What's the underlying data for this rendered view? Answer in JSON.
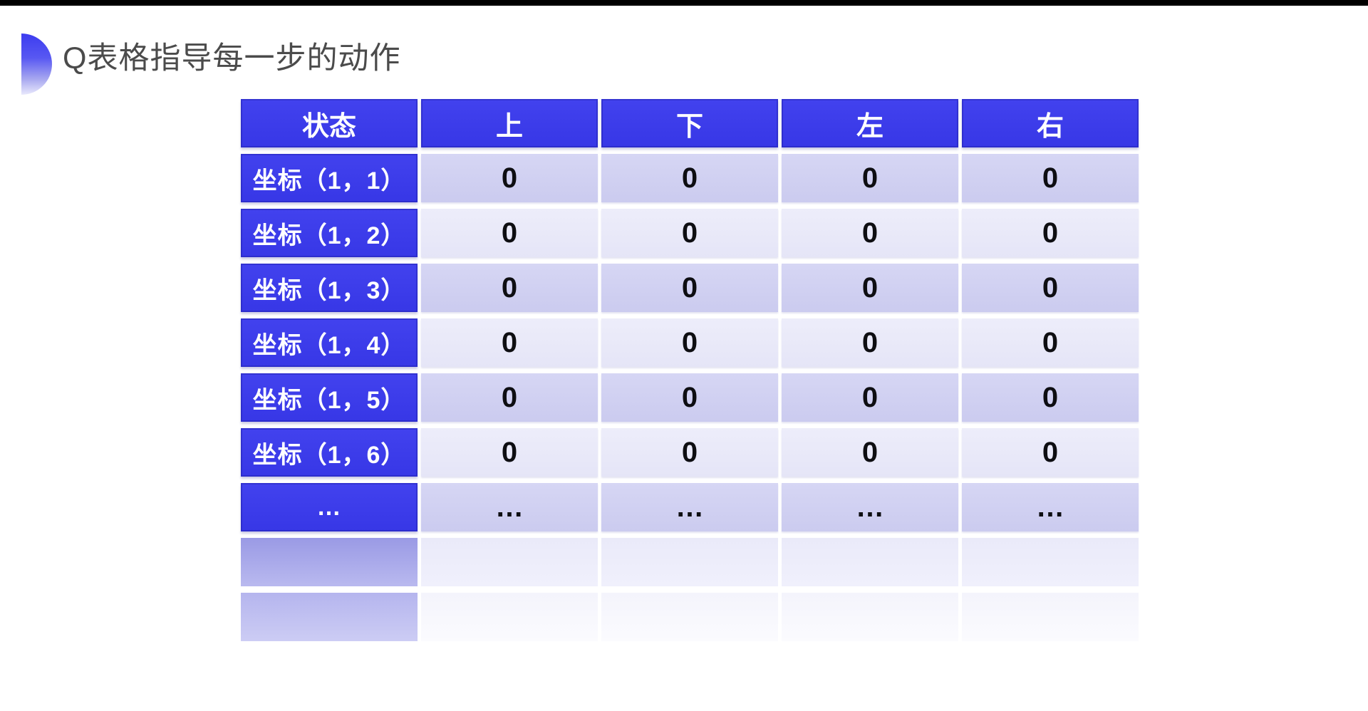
{
  "slide": {
    "title": "Q表格指导每一步的动作"
  },
  "table": {
    "headers": [
      {
        "key": "state",
        "label": "状态"
      },
      {
        "key": "up",
        "label": "上"
      },
      {
        "key": "down",
        "label": "下"
      },
      {
        "key": "left",
        "label": "左"
      },
      {
        "key": "right",
        "label": "右"
      }
    ],
    "rows": [
      {
        "label": "坐标（1，1）",
        "values": [
          "0",
          "0",
          "0",
          "0"
        ]
      },
      {
        "label": "坐标（1，2）",
        "values": [
          "0",
          "0",
          "0",
          "0"
        ]
      },
      {
        "label": "坐标（1，3）",
        "values": [
          "0",
          "0",
          "0",
          "0"
        ]
      },
      {
        "label": "坐标（1，4）",
        "values": [
          "0",
          "0",
          "0",
          "0"
        ]
      },
      {
        "label": "坐标（1，5）",
        "values": [
          "0",
          "0",
          "0",
          "0"
        ]
      },
      {
        "label": "坐标（1，6）",
        "values": [
          "0",
          "0",
          "0",
          "0"
        ]
      },
      {
        "label": "…",
        "values": [
          "…",
          "…",
          "…",
          "…"
        ]
      }
    ],
    "faded_reflection_rows": 2
  },
  "colors": {
    "accent_blue": "#3a3aec",
    "row_odd_lavender": "#cfcff1",
    "row_even_lavender": "#e9e9f8",
    "title_text": "#4b4b4b",
    "header_text": "#ffffff",
    "value_text": "#0e0e12",
    "top_bar": "#000000"
  }
}
